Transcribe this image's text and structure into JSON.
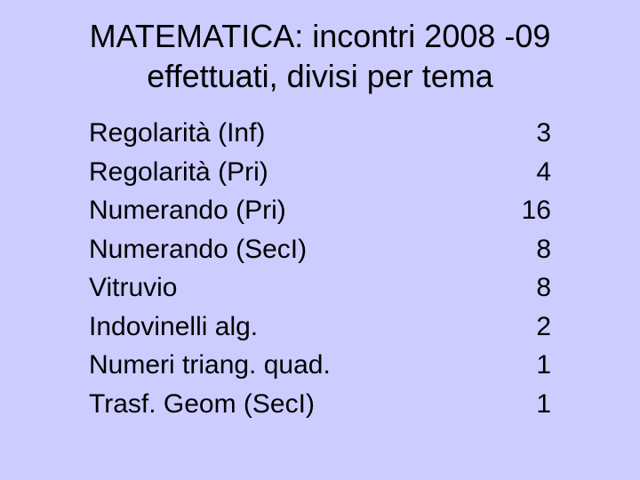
{
  "colors": {
    "background": "#ccccff",
    "text": "#000000"
  },
  "typography": {
    "title_fontsize": 36,
    "body_fontsize": 30,
    "font_family": "Arial"
  },
  "title": {
    "line1": "MATEMATICA:  incontri 2008 -09",
    "line2": "effettuati, divisi per tema"
  },
  "table": {
    "rows": [
      {
        "label": "Regolarità (Inf)",
        "value": "3"
      },
      {
        "label": "Regolarità (Pri)",
        "value": "4"
      },
      {
        "label": "Numerando (Pri)",
        "value": "16"
      },
      {
        "label": "Numerando (SecI)",
        "value": "8"
      },
      {
        "label": "Vitruvio",
        "value": "8"
      },
      {
        "label": "Indovinelli alg.",
        "value": "2"
      },
      {
        "label": "Numeri triang. quad.",
        "value": "1"
      },
      {
        "label": "Trasf. Geom (SecI)",
        "value": "1"
      }
    ]
  }
}
